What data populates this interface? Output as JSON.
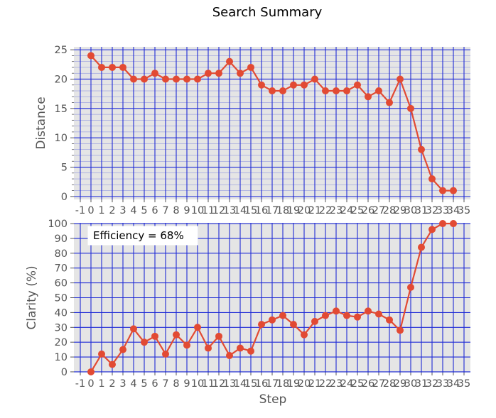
{
  "chart_data": {
    "type": "line",
    "title": "Search Summary",
    "xlabel": "Step",
    "xticks": [
      "-1",
      "0",
      "1",
      "2",
      "3",
      "4",
      "5",
      "6",
      "7",
      "8",
      "9",
      "10",
      "11",
      "12",
      "13",
      "14",
      "15",
      "16",
      "17",
      "18",
      "19",
      "20",
      "21",
      "22",
      "23",
      "24",
      "25",
      "26",
      "27",
      "28",
      "29",
      "30",
      "31",
      "32",
      "33",
      "34",
      "35"
    ],
    "xlim": [
      -1.6,
      35.6
    ],
    "x": [
      0,
      1,
      2,
      3,
      4,
      5,
      6,
      7,
      8,
      9,
      10,
      11,
      12,
      13,
      14,
      15,
      16,
      17,
      18,
      19,
      20,
      21,
      22,
      23,
      24,
      25,
      26,
      27,
      28,
      29,
      30,
      31,
      32,
      33,
      34
    ],
    "grid": true,
    "colors": {
      "line": "#e24a33",
      "grid": "#1f2bd6",
      "background": "#e5e5e5"
    },
    "panels": [
      {
        "ylabel": "Distance",
        "ylim": [
          -0.5,
          25.5
        ],
        "yticks": [
          "0",
          "5",
          "10",
          "15",
          "20",
          "25"
        ],
        "minor_yticks": true,
        "values": [
          24,
          22,
          22,
          22,
          20,
          20,
          21,
          20,
          20,
          20,
          20,
          21,
          21,
          23,
          21,
          22,
          19,
          18,
          18,
          19,
          19,
          20,
          18,
          18,
          18,
          19,
          17,
          18,
          16,
          20,
          15,
          8,
          3,
          1,
          1
        ]
      },
      {
        "ylabel": "Clarity (%)",
        "ylim": [
          -0.5,
          100.5
        ],
        "yticks": [
          "0",
          "10",
          "20",
          "30",
          "40",
          "50",
          "60",
          "70",
          "80",
          "90",
          "100"
        ],
        "annotation": "Efficiency = 68%",
        "values": [
          0,
          12,
          5,
          15,
          29,
          20,
          24,
          12,
          25,
          18,
          30,
          16,
          24,
          11,
          16,
          14,
          32,
          35,
          38,
          32,
          25,
          34,
          38,
          41,
          38,
          37,
          41,
          39,
          35,
          28,
          57,
          84,
          96,
          100,
          100
        ]
      }
    ]
  }
}
